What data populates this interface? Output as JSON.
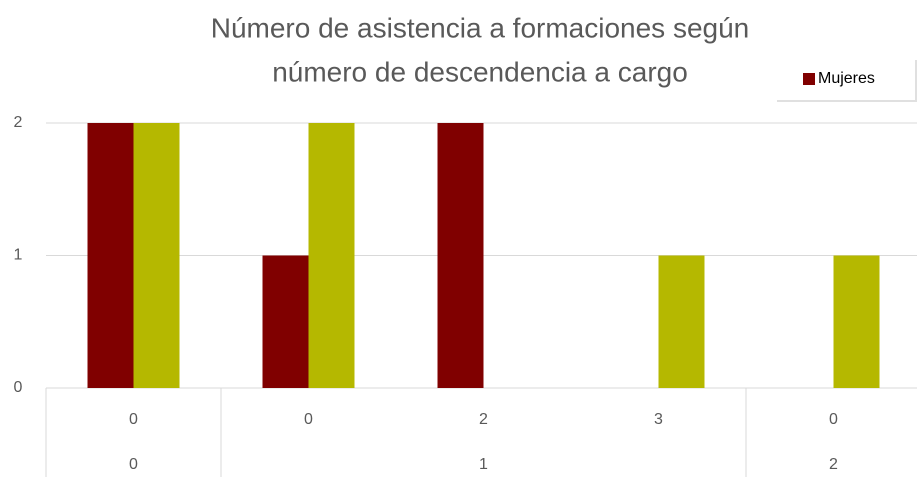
{
  "chart_data": {
    "type": "bar",
    "title": [
      "Número de asistencia a formaciones según",
      "número de descendencia a cargo"
    ],
    "categories": [
      "0",
      "0",
      "2",
      "3",
      "0"
    ],
    "groups": [
      {
        "label": "0",
        "span": 1
      },
      {
        "label": "1",
        "span": 3
      },
      {
        "label": "2",
        "span": 1
      }
    ],
    "series": [
      {
        "name": "Mujeres",
        "color": "#800000",
        "values": [
          2,
          1,
          2,
          0,
          0
        ]
      },
      {
        "color": "#b5b800",
        "values": [
          2,
          2,
          0,
          1,
          1
        ]
      }
    ],
    "ylim": [
      0,
      2
    ],
    "yticks": [
      0,
      1,
      2
    ],
    "grid": true,
    "legend": "top-right"
  }
}
